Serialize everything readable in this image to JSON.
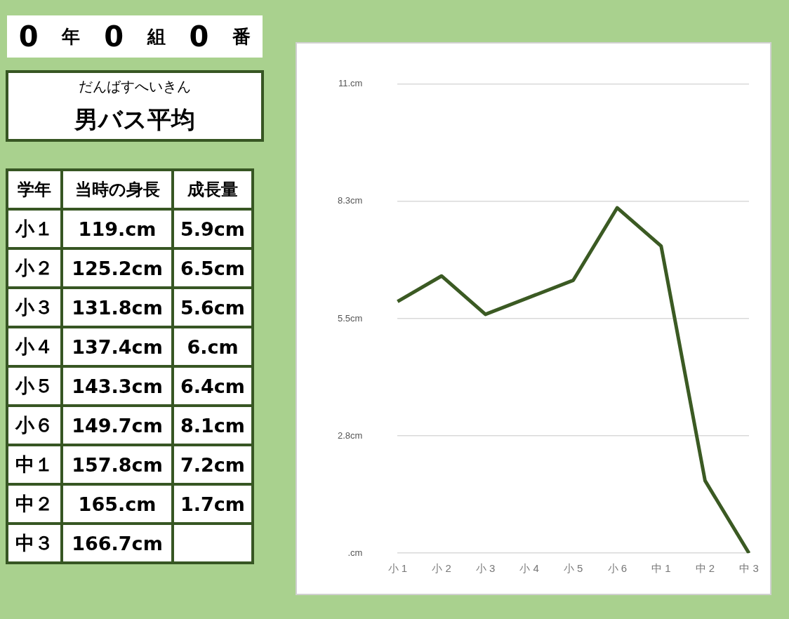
{
  "chart_data": {
    "type": "line",
    "title": "男バス平均",
    "subtitle": "だんばすへいきん",
    "annotations": [
      "0 年 0 組 0 番",
      "学年",
      "当時の身長",
      "成長量",
      "小１",
      "119.cm",
      "5.9cm",
      "小２",
      "125.2cm",
      "6.5cm",
      "小３",
      "131.8cm",
      "5.6cm",
      "小４",
      "137.4cm",
      "6.cm",
      "小５",
      "143.3cm",
      "6.4cm",
      "小６",
      "149.7cm",
      "8.1cm",
      "中１",
      "157.8cm",
      "7.2cm",
      "中２",
      "165.cm",
      "1.7cm",
      "中３",
      "166.7cm"
    ],
    "categories": [
      "小 1",
      "小 2",
      "小 3",
      "小 4",
      "小 5",
      "小 6",
      "中 1",
      "中 2",
      "中 3"
    ],
    "values": [
      5.9,
      6.5,
      5.6,
      6,
      6.4,
      8.1,
      7.2,
      1.7,
      0
    ],
    "color": "#3b5a23",
    "ylim": [
      0,
      11
    ],
    "yticks": [
      {
        "value": 0,
        "label": ".cm"
      },
      {
        "value": 2.75,
        "label": "2.8cm"
      },
      {
        "value": 5.5,
        "label": "5.5cm"
      },
      {
        "value": 8.25,
        "label": "8.3cm"
      },
      {
        "value": 11,
        "label": "11.cm"
      }
    ],
    "grid": "y",
    "marker": "none",
    "line_style": "solid",
    "legend": false
  }
}
